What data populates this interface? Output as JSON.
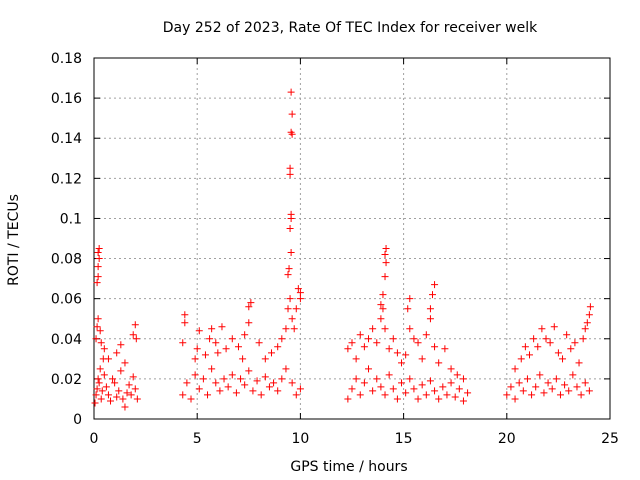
{
  "chart_data": {
    "type": "scatter",
    "title": "Day 252 of 2023, Rate Of TEC Index for receiver welk",
    "xlabel": "GPS time / hours",
    "ylabel": "ROTI / TECUs",
    "xlim": [
      0,
      25
    ],
    "ylim": [
      0,
      0.18
    ],
    "xticks": [
      "0",
      "5",
      "10",
      "15",
      "20",
      "25"
    ],
    "yticks": [
      "0",
      "0.02",
      "0.04",
      "0.06",
      "0.08",
      "0.1",
      "0.12",
      "0.14",
      "0.16",
      "0.18"
    ],
    "grid": true,
    "marker": "+",
    "color": "#ff0000",
    "series": [
      {
        "points": [
          [
            0.05,
            0.008
          ],
          [
            0.1,
            0.012
          ],
          [
            0.15,
            0.015
          ],
          [
            0.2,
            0.02
          ],
          [
            0.25,
            0.018
          ],
          [
            0.3,
            0.025
          ],
          [
            0.35,
            0.01
          ],
          [
            0.4,
            0.014
          ],
          [
            0.45,
            0.03
          ],
          [
            0.5,
            0.022
          ],
          [
            0.6,
            0.016
          ],
          [
            0.7,
            0.012
          ],
          [
            0.8,
            0.009
          ],
          [
            0.9,
            0.02
          ],
          [
            1.0,
            0.018
          ],
          [
            1.1,
            0.011
          ],
          [
            1.2,
            0.014
          ],
          [
            1.3,
            0.024
          ],
          [
            1.4,
            0.01
          ],
          [
            1.5,
            0.006
          ],
          [
            1.6,
            0.013
          ],
          [
            1.7,
            0.017
          ],
          [
            1.8,
            0.012
          ],
          [
            1.9,
            0.021
          ],
          [
            2.0,
            0.015
          ],
          [
            2.1,
            0.01
          ],
          [
            0.1,
            0.04
          ],
          [
            0.15,
            0.046
          ],
          [
            0.2,
            0.05
          ],
          [
            0.3,
            0.044
          ],
          [
            0.35,
            0.038
          ],
          [
            0.5,
            0.035
          ],
          [
            0.7,
            0.03
          ],
          [
            1.1,
            0.033
          ],
          [
            1.3,
            0.037
          ],
          [
            1.5,
            0.028
          ],
          [
            1.9,
            0.042
          ],
          [
            2.0,
            0.047
          ],
          [
            2.05,
            0.04
          ],
          [
            0.15,
            0.068
          ],
          [
            0.2,
            0.071
          ],
          [
            0.2,
            0.076
          ],
          [
            0.25,
            0.08
          ],
          [
            0.2,
            0.083
          ],
          [
            0.25,
            0.085
          ],
          [
            4.3,
            0.012
          ],
          [
            4.5,
            0.018
          ],
          [
            4.7,
            0.01
          ],
          [
            4.9,
            0.022
          ],
          [
            5.1,
            0.015
          ],
          [
            5.3,
            0.02
          ],
          [
            5.5,
            0.012
          ],
          [
            5.7,
            0.025
          ],
          [
            5.9,
            0.018
          ],
          [
            6.1,
            0.014
          ],
          [
            6.3,
            0.02
          ],
          [
            6.5,
            0.016
          ],
          [
            6.7,
            0.022
          ],
          [
            6.9,
            0.013
          ],
          [
            7.1,
            0.02
          ],
          [
            7.3,
            0.017
          ],
          [
            7.5,
            0.024
          ],
          [
            7.7,
            0.014
          ],
          [
            7.9,
            0.019
          ],
          [
            8.1,
            0.012
          ],
          [
            8.3,
            0.021
          ],
          [
            8.5,
            0.016
          ],
          [
            8.7,
            0.018
          ],
          [
            8.9,
            0.014
          ],
          [
            9.1,
            0.02
          ],
          [
            9.3,
            0.025
          ],
          [
            9.6,
            0.018
          ],
          [
            9.8,
            0.012
          ],
          [
            10.0,
            0.015
          ],
          [
            4.3,
            0.038
          ],
          [
            4.4,
            0.048
          ],
          [
            4.4,
            0.052
          ],
          [
            4.9,
            0.03
          ],
          [
            5.0,
            0.035
          ],
          [
            5.1,
            0.044
          ],
          [
            5.4,
            0.032
          ],
          [
            5.6,
            0.04
          ],
          [
            5.7,
            0.045
          ],
          [
            5.9,
            0.038
          ],
          [
            6.0,
            0.033
          ],
          [
            6.2,
            0.046
          ],
          [
            6.4,
            0.035
          ],
          [
            6.7,
            0.04
          ],
          [
            7.0,
            0.036
          ],
          [
            7.2,
            0.03
          ],
          [
            7.3,
            0.042
          ],
          [
            7.5,
            0.048
          ],
          [
            7.5,
            0.056
          ],
          [
            7.6,
            0.058
          ],
          [
            8.0,
            0.038
          ],
          [
            8.3,
            0.03
          ],
          [
            8.6,
            0.033
          ],
          [
            8.9,
            0.036
          ],
          [
            9.1,
            0.04
          ],
          [
            9.3,
            0.045
          ],
          [
            9.4,
            0.055
          ],
          [
            9.5,
            0.06
          ],
          [
            9.6,
            0.05
          ],
          [
            9.7,
            0.045
          ],
          [
            9.8,
            0.055
          ],
          [
            9.9,
            0.065
          ],
          [
            10.0,
            0.06
          ],
          [
            10.0,
            0.063
          ],
          [
            9.4,
            0.072
          ],
          [
            9.45,
            0.075
          ],
          [
            9.55,
            0.083
          ],
          [
            9.5,
            0.095
          ],
          [
            9.55,
            0.1
          ],
          [
            9.55,
            0.102
          ],
          [
            9.5,
            0.122
          ],
          [
            9.5,
            0.125
          ],
          [
            9.6,
            0.142
          ],
          [
            9.55,
            0.143
          ],
          [
            9.6,
            0.152
          ],
          [
            9.55,
            0.163
          ],
          [
            12.3,
            0.01
          ],
          [
            12.5,
            0.015
          ],
          [
            12.7,
            0.02
          ],
          [
            12.9,
            0.012
          ],
          [
            13.1,
            0.018
          ],
          [
            13.3,
            0.025
          ],
          [
            13.5,
            0.014
          ],
          [
            13.7,
            0.02
          ],
          [
            13.9,
            0.016
          ],
          [
            14.1,
            0.012
          ],
          [
            14.3,
            0.022
          ],
          [
            14.5,
            0.015
          ],
          [
            14.7,
            0.01
          ],
          [
            14.9,
            0.018
          ],
          [
            15.1,
            0.013
          ],
          [
            15.3,
            0.02
          ],
          [
            15.5,
            0.015
          ],
          [
            15.7,
            0.01
          ],
          [
            15.9,
            0.017
          ],
          [
            16.1,
            0.012
          ],
          [
            16.3,
            0.019
          ],
          [
            16.5,
            0.014
          ],
          [
            16.7,
            0.01
          ],
          [
            16.9,
            0.016
          ],
          [
            17.1,
            0.012
          ],
          [
            17.3,
            0.018
          ],
          [
            17.5,
            0.011
          ],
          [
            17.7,
            0.015
          ],
          [
            17.9,
            0.009
          ],
          [
            18.1,
            0.013
          ],
          [
            12.3,
            0.035
          ],
          [
            12.5,
            0.038
          ],
          [
            12.7,
            0.03
          ],
          [
            12.9,
            0.042
          ],
          [
            13.1,
            0.036
          ],
          [
            13.3,
            0.04
          ],
          [
            13.5,
            0.045
          ],
          [
            13.7,
            0.038
          ],
          [
            13.9,
            0.05
          ],
          [
            14.0,
            0.055
          ],
          [
            14.1,
            0.045
          ],
          [
            14.3,
            0.035
          ],
          [
            14.5,
            0.04
          ],
          [
            14.7,
            0.033
          ],
          [
            14.9,
            0.028
          ],
          [
            15.1,
            0.032
          ],
          [
            15.3,
            0.045
          ],
          [
            15.5,
            0.04
          ],
          [
            15.7,
            0.038
          ],
          [
            15.9,
            0.03
          ],
          [
            16.1,
            0.042
          ],
          [
            16.3,
            0.05
          ],
          [
            16.5,
            0.036
          ],
          [
            16.7,
            0.028
          ],
          [
            17.0,
            0.035
          ],
          [
            17.3,
            0.025
          ],
          [
            17.6,
            0.022
          ],
          [
            17.9,
            0.02
          ],
          [
            13.9,
            0.057
          ],
          [
            14.0,
            0.062
          ],
          [
            14.1,
            0.071
          ],
          [
            14.15,
            0.078
          ],
          [
            14.1,
            0.082
          ],
          [
            14.15,
            0.085
          ],
          [
            15.2,
            0.055
          ],
          [
            15.3,
            0.06
          ],
          [
            16.3,
            0.055
          ],
          [
            16.4,
            0.062
          ],
          [
            16.5,
            0.067
          ],
          [
            20.0,
            0.012
          ],
          [
            20.2,
            0.016
          ],
          [
            20.4,
            0.01
          ],
          [
            20.6,
            0.018
          ],
          [
            20.8,
            0.014
          ],
          [
            21.0,
            0.02
          ],
          [
            21.2,
            0.012
          ],
          [
            21.4,
            0.016
          ],
          [
            21.6,
            0.022
          ],
          [
            21.8,
            0.013
          ],
          [
            22.0,
            0.018
          ],
          [
            22.2,
            0.015
          ],
          [
            22.4,
            0.02
          ],
          [
            22.6,
            0.012
          ],
          [
            22.8,
            0.017
          ],
          [
            23.0,
            0.014
          ],
          [
            23.2,
            0.022
          ],
          [
            23.4,
            0.016
          ],
          [
            23.6,
            0.012
          ],
          [
            23.8,
            0.018
          ],
          [
            24.0,
            0.014
          ],
          [
            20.4,
            0.025
          ],
          [
            20.7,
            0.03
          ],
          [
            20.9,
            0.036
          ],
          [
            21.1,
            0.032
          ],
          [
            21.3,
            0.04
          ],
          [
            21.5,
            0.036
          ],
          [
            21.7,
            0.045
          ],
          [
            21.9,
            0.04
          ],
          [
            22.1,
            0.038
          ],
          [
            22.3,
            0.046
          ],
          [
            22.5,
            0.033
          ],
          [
            22.7,
            0.03
          ],
          [
            22.9,
            0.042
          ],
          [
            23.1,
            0.035
          ],
          [
            23.3,
            0.038
          ],
          [
            23.5,
            0.028
          ],
          [
            23.7,
            0.04
          ],
          [
            23.8,
            0.045
          ],
          [
            23.9,
            0.048
          ],
          [
            24.0,
            0.052
          ],
          [
            24.05,
            0.056
          ]
        ]
      }
    ]
  }
}
